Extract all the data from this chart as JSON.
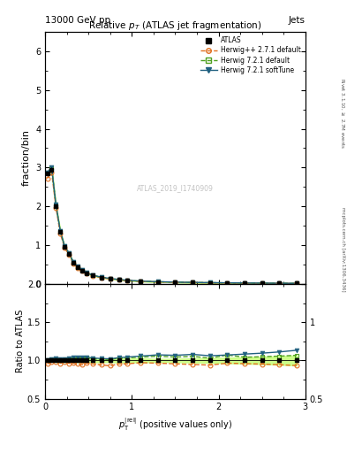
{
  "title": "Relative $p_T$ (ATLAS jet fragmentation)",
  "top_left_label": "13000 GeV pp",
  "top_right_label": "Jets",
  "right_label_top": "Rivet 3.1.10, $\\geq$ 2.7M events",
  "right_label_bottom": "mcplots.cern.ch [arXiv:1306.3436]",
  "watermark": "ATLAS_2019_I1740909",
  "ylabel_main": "fraction/bin",
  "ylabel_ratio": "Ratio to ATLAS",
  "xlabel": "$p_{\\mathrm{T}}^{\\mathrm{|rel|}}$ (positive values only)",
  "ylim_main": [
    0,
    6.5
  ],
  "ylim_ratio": [
    0.5,
    2.0
  ],
  "xlim": [
    0,
    3.0
  ],
  "x_data": [
    0.025,
    0.075,
    0.125,
    0.175,
    0.225,
    0.275,
    0.325,
    0.375,
    0.425,
    0.475,
    0.55,
    0.65,
    0.75,
    0.85,
    0.95,
    1.1,
    1.3,
    1.5,
    1.7,
    1.9,
    2.1,
    2.3,
    2.5,
    2.7,
    2.9
  ],
  "atlas_y": [
    2.85,
    2.95,
    2.0,
    1.35,
    0.95,
    0.78,
    0.55,
    0.43,
    0.35,
    0.28,
    0.22,
    0.17,
    0.14,
    0.11,
    0.09,
    0.07,
    0.055,
    0.045,
    0.038,
    0.033,
    0.028,
    0.024,
    0.021,
    0.018,
    0.015
  ],
  "atlas_yerr": [
    0.05,
    0.05,
    0.04,
    0.03,
    0.02,
    0.015,
    0.012,
    0.01,
    0.008,
    0.007,
    0.005,
    0.004,
    0.003,
    0.003,
    0.002,
    0.002,
    0.001,
    0.001,
    0.001,
    0.001,
    0.001,
    0.001,
    0.001,
    0.001,
    0.001
  ],
  "herwig_pp_y": [
    2.72,
    2.88,
    1.97,
    1.3,
    0.93,
    0.75,
    0.53,
    0.41,
    0.33,
    0.27,
    0.21,
    0.16,
    0.13,
    0.105,
    0.086,
    0.068,
    0.053,
    0.043,
    0.036,
    0.031,
    0.027,
    0.023,
    0.02,
    0.017,
    0.014
  ],
  "herwig721_default_y": [
    2.87,
    2.99,
    2.03,
    1.36,
    0.97,
    0.79,
    0.56,
    0.44,
    0.36,
    0.29,
    0.225,
    0.172,
    0.142,
    0.113,
    0.093,
    0.073,
    0.058,
    0.047,
    0.04,
    0.034,
    0.03,
    0.025,
    0.022,
    0.019,
    0.016
  ],
  "herwig721_soft_y": [
    2.87,
    3.01,
    2.05,
    1.37,
    0.97,
    0.8,
    0.57,
    0.445,
    0.362,
    0.292,
    0.227,
    0.174,
    0.143,
    0.114,
    0.094,
    0.074,
    0.059,
    0.048,
    0.041,
    0.035,
    0.03,
    0.026,
    0.023,
    0.02,
    0.017
  ],
  "atlas_color": "#000000",
  "herwig_pp_color": "#e07020",
  "herwig721_default_color": "#50a020",
  "herwig721_soft_color": "#206080",
  "atlas_band_color": "#ccff88",
  "ratio_herwig_pp": [
    0.955,
    0.976,
    0.985,
    0.963,
    0.979,
    0.962,
    0.964,
    0.953,
    0.943,
    0.964,
    0.955,
    0.941,
    0.929,
    0.955,
    0.956,
    0.971,
    0.964,
    0.956,
    0.947,
    0.939,
    0.964,
    0.958,
    0.952,
    0.944,
    0.933
  ],
  "ratio_herwig721_default": [
    1.007,
    1.014,
    1.015,
    1.007,
    1.021,
    1.013,
    1.018,
    1.023,
    1.029,
    1.036,
    1.023,
    1.012,
    1.014,
    1.027,
    1.033,
    1.043,
    1.055,
    1.044,
    1.053,
    1.03,
    1.071,
    1.042,
    1.048,
    1.056,
    1.067
  ],
  "ratio_herwig721_soft": [
    1.007,
    1.02,
    1.025,
    1.015,
    1.021,
    1.026,
    1.036,
    1.035,
    1.034,
    1.043,
    1.032,
    1.024,
    1.021,
    1.036,
    1.044,
    1.057,
    1.073,
    1.067,
    1.079,
    1.061,
    1.071,
    1.083,
    1.095,
    1.111,
    1.133
  ]
}
